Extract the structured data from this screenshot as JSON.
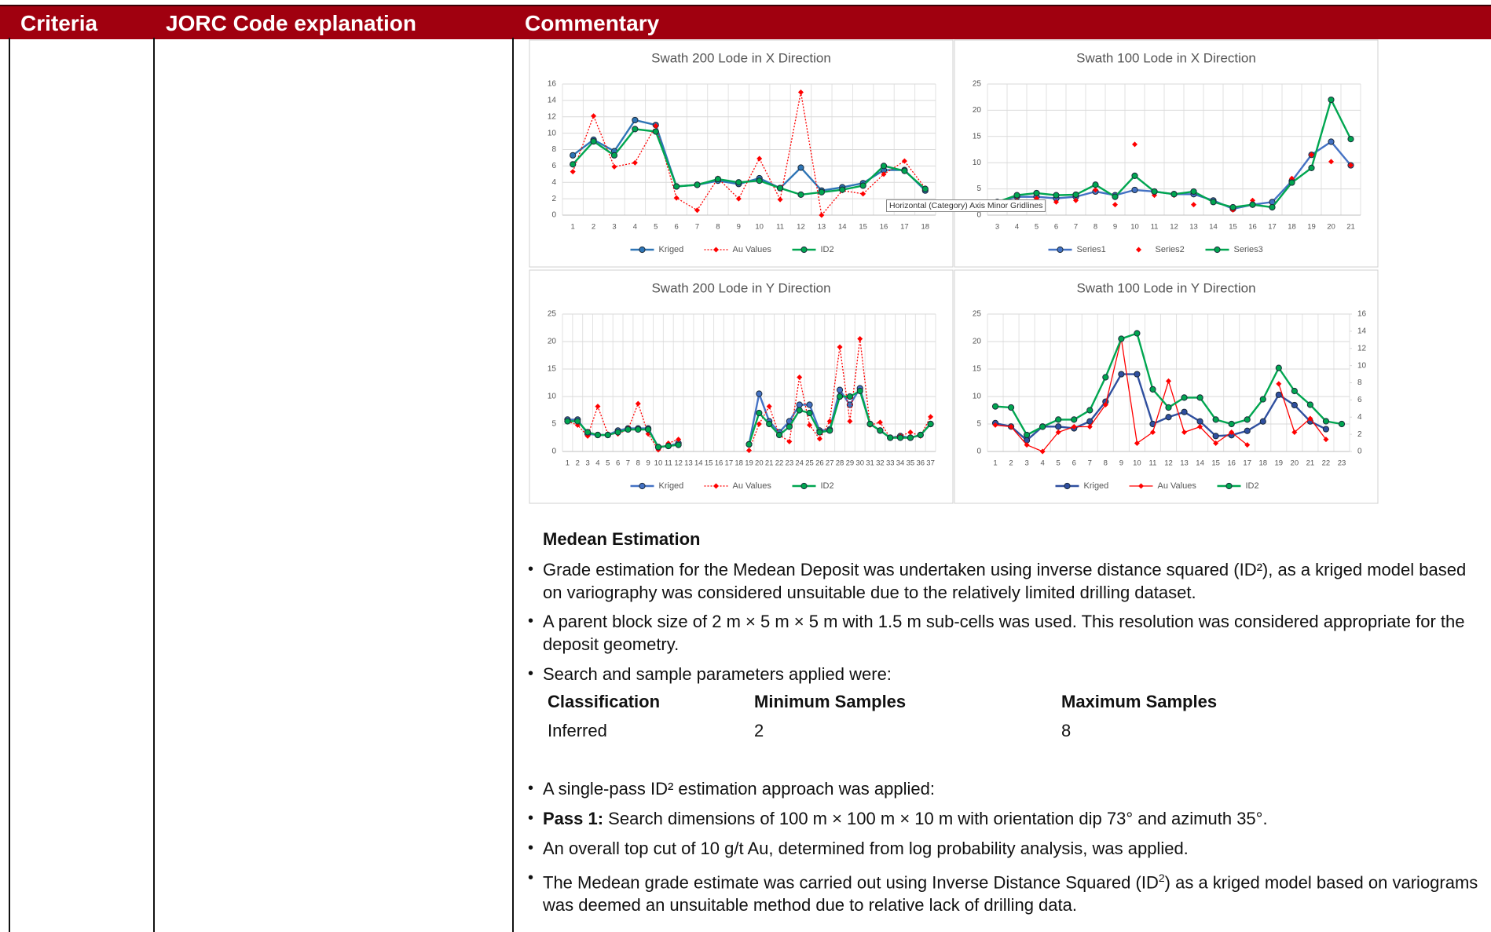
{
  "header": {
    "columns": [
      "Criteria",
      "JORC Code explanation",
      "Commentary"
    ]
  },
  "charts": [
    {
      "type": "line",
      "title": "Swath 200 Lode in X Direction",
      "categories": [
        1,
        2,
        3,
        4,
        5,
        6,
        7,
        8,
        9,
        10,
        11,
        12,
        13,
        14,
        15,
        16,
        17,
        18
      ],
      "ylim": [
        0,
        16
      ],
      "yticks": [
        0,
        2,
        4,
        6,
        8,
        10,
        12,
        14,
        16
      ],
      "grid": true,
      "series": [
        {
          "name": "Kriged",
          "color": "#2e75b6",
          "line_style": "solid",
          "marker": "circle",
          "values": [
            7.3,
            9.2,
            7.8,
            11.6,
            11.0,
            3.5,
            3.7,
            4.2,
            3.8,
            4.5,
            3.3,
            5.8,
            3.0,
            3.4,
            3.9,
            5.5,
            5.5,
            3.0
          ]
        },
        {
          "name": "Au Values",
          "color": "#ff0000",
          "line_style": "dotted",
          "marker": "diamond",
          "values": [
            5.3,
            12.1,
            5.9,
            6.4,
            10.9,
            2.1,
            0.6,
            4.5,
            2.0,
            6.9,
            1.9,
            15.0,
            0,
            3.0,
            2.6,
            5.0,
            6.6,
            3.3
          ]
        },
        {
          "name": "ID2",
          "color": "#00a650",
          "line_style": "solid",
          "marker": "circle",
          "values": [
            6.2,
            9.0,
            7.3,
            10.5,
            10.2,
            3.5,
            3.7,
            4.4,
            4.0,
            4.2,
            3.3,
            2.5,
            2.8,
            3.1,
            3.6,
            6.0,
            5.4,
            3.2
          ]
        }
      ]
    },
    {
      "type": "line",
      "title": "Swath 100 Lode in X Direction",
      "annotation": "Horizontal (Category) Axis Minor Gridlines",
      "categories": [
        3,
        4,
        5,
        6,
        7,
        8,
        9,
        10,
        11,
        12,
        13,
        14,
        15,
        16,
        17,
        18,
        19,
        20,
        21
      ],
      "ylim": [
        0,
        25
      ],
      "yticks": [
        0,
        5,
        10,
        15,
        20,
        25
      ],
      "grid": true,
      "series": [
        {
          "name": "Series1",
          "color": "#4472c4",
          "line_style": "solid",
          "marker": "circle",
          "values": [
            2.5,
            3.5,
            3.5,
            3.2,
            3.5,
            4.5,
            3.8,
            4.8,
            4.5,
            4.0,
            4.0,
            2.8,
            1.2,
            2.0,
            2.5,
            6.5,
            11.5,
            14.0,
            9.5
          ]
        },
        {
          "name": "Series2",
          "color": "#ff0000",
          "line_style": "none",
          "marker": "diamond",
          "values": [
            2.0,
            3.5,
            3.2,
            2.5,
            2.8,
            4.8,
            2.0,
            13.5,
            3.8,
            3.8,
            2.0,
            2.5,
            1.0,
            2.8,
            1.5,
            7.0,
            11.5,
            10.2,
            9.5
          ]
        },
        {
          "name": "Series3",
          "color": "#00a650",
          "line_style": "solid",
          "marker": "circle",
          "values": [
            2.5,
            3.8,
            4.2,
            3.8,
            3.9,
            5.8,
            3.5,
            7.5,
            4.5,
            4.0,
            4.5,
            2.5,
            1.5,
            2.0,
            1.5,
            6.2,
            9.0,
            22.0,
            14.5
          ]
        }
      ]
    },
    {
      "type": "line",
      "title": "Swath 200 Lode in Y Direction",
      "categories": [
        1,
        2,
        3,
        4,
        5,
        6,
        7,
        8,
        9,
        10,
        11,
        12,
        13,
        14,
        15,
        16,
        17,
        18,
        19,
        20,
        21,
        22,
        23,
        24,
        25,
        26,
        27,
        28,
        29,
        30,
        31,
        32,
        33,
        34,
        35,
        36,
        37
      ],
      "ylim": [
        0,
        25
      ],
      "yticks": [
        0,
        5,
        10,
        15,
        20,
        25
      ],
      "grid": true,
      "series": [
        {
          "name": "Kriged",
          "color": "#4472c4",
          "line_style": "solid",
          "marker": "circle",
          "values": [
            5.8,
            5.8,
            3.2,
            3.0,
            3.0,
            3.8,
            4.2,
            4.2,
            4.2,
            0.8,
            1.0,
            1.5,
            null,
            null,
            null,
            null,
            null,
            null,
            1.3,
            10.5,
            5.5,
            3.5,
            5.5,
            8.5,
            8.5,
            3.8,
            4.0,
            11.2,
            8.5,
            11.5,
            5.0,
            3.8,
            2.5,
            2.8,
            2.5,
            3.0,
            5.0
          ]
        },
        {
          "name": "Au Values",
          "color": "#ff0000",
          "line_style": "dotted",
          "marker": "diamond",
          "values": [
            5.5,
            4.8,
            2.8,
            8.2,
            3.2,
            3.2,
            4.0,
            8.7,
            3.2,
            0.3,
            1.5,
            2.2,
            null,
            null,
            null,
            null,
            null,
            null,
            0.2,
            5.0,
            8.2,
            3.0,
            1.8,
            13.5,
            4.8,
            2.3,
            5.5,
            19.0,
            5.5,
            20.5,
            4.8,
            5.3,
            2.5,
            2.8,
            3.5,
            2.8,
            6.3
          ]
        },
        {
          "name": "ID2",
          "color": "#00a650",
          "line_style": "solid",
          "marker": "circle",
          "values": [
            5.5,
            5.5,
            3.5,
            3.0,
            3.0,
            3.5,
            4.0,
            4.0,
            4.0,
            0.8,
            1.0,
            1.2,
            null,
            null,
            null,
            null,
            null,
            null,
            1.3,
            7.0,
            5.0,
            3.0,
            4.5,
            7.5,
            7.0,
            3.5,
            3.8,
            10.0,
            10.0,
            11.0,
            5.0,
            3.8,
            2.5,
            2.5,
            2.5,
            3.0,
            5.0
          ]
        }
      ]
    },
    {
      "type": "line",
      "title": "Swath 100 Lode in Y Direction",
      "categories": [
        1,
        2,
        3,
        4,
        5,
        6,
        7,
        8,
        9,
        10,
        11,
        12,
        13,
        14,
        15,
        16,
        17,
        18,
        19,
        20,
        21,
        22,
        23
      ],
      "ylim": [
        0,
        25
      ],
      "yticks": [
        0,
        5,
        10,
        15,
        20,
        25
      ],
      "y2lim": [
        0,
        16
      ],
      "y2ticks": [
        0,
        2,
        4,
        6,
        8,
        10,
        12,
        14,
        16
      ],
      "grid": true,
      "series": [
        {
          "name": "Kriged",
          "color": "#2f4f9f",
          "line_style": "solid",
          "marker": "circle",
          "axis": "y2",
          "values": [
            3.3,
            2.9,
            1.3,
            2.9,
            2.9,
            2.7,
            3.5,
            5.8,
            9.0,
            9.0,
            3.2,
            4.0,
            4.6,
            3.5,
            1.8,
            1.9,
            2.4,
            3.5,
            6.6,
            5.4,
            3.5,
            2.6,
            null
          ]
        },
        {
          "name": "Au Values",
          "color": "#ff0000",
          "line_style": "thin",
          "marker": "diamond",
          "values": [
            4.8,
            4.5,
            1.2,
            0,
            3.5,
            4.5,
            4.5,
            8.5,
            20.5,
            1.5,
            3.5,
            12.8,
            3.5,
            4.5,
            1.5,
            3.5,
            1.2,
            null,
            12.3,
            3.5,
            6.0,
            2.2,
            null
          ]
        },
        {
          "name": "ID2",
          "color": "#00a650",
          "line_style": "solid",
          "marker": "circle",
          "values": [
            8.2,
            8.0,
            3.0,
            4.5,
            5.8,
            5.8,
            7.5,
            13.5,
            20.5,
            21.5,
            11.3,
            8.0,
            9.8,
            9.8,
            5.8,
            5.0,
            5.8,
            9.5,
            15.2,
            11.0,
            8.5,
            5.5,
            5.0
          ]
        }
      ]
    }
  ],
  "section": {
    "heading": "Medean Estimation",
    "bullets": [
      "Grade estimation for the Medean Deposit was undertaken using inverse distance squared (ID²), as a kriged model based on variography was considered unsuitable due to the relatively limited drilling dataset.",
      "A parent block size of 2 m × 5 m × 5 m with 1.5 m sub-cells was used. This resolution was considered appropriate for the deposit geometry.",
      "Search and sample parameters applied were:"
    ],
    "table": {
      "header": [
        "Classification",
        "Minimum Samples",
        "Maximum Samples"
      ],
      "rows": [
        [
          "Inferred",
          "2",
          "8"
        ]
      ]
    },
    "bullets_after": [
      "A single-pass ID² estimation approach was applied:",
      {
        "lead": "Pass 1:",
        "text": " Search dimensions of 100 m × 100 m × 10 m with orientation dip 73° and azimuth 35°."
      },
      "An overall top cut of 10 g/t Au, determined from log probability analysis, was applied.",
      {
        "parts": [
          "The Medean grade estimate was carried out using Inverse Distance Squared (ID",
          "2",
          ") as a kriged model based on variograms was deemed an unsuitable method due to relative lack of drilling data."
        ]
      }
    ]
  }
}
